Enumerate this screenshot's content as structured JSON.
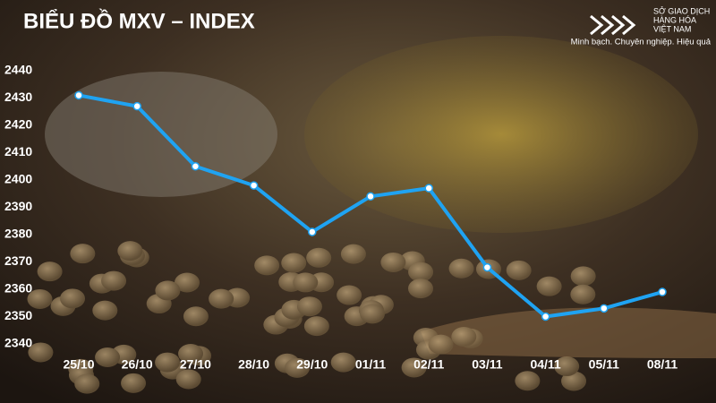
{
  "chart_data": {
    "type": "line",
    "title": "BIỂU ĐỒ MXV – INDEX",
    "categories": [
      "25/10",
      "26/10",
      "27/10",
      "28/10",
      "29/10",
      "01/11",
      "02/11",
      "03/11",
      "04/11",
      "05/11",
      "08/11"
    ],
    "values": [
      2431,
      2427,
      2405,
      2398,
      2381,
      2394,
      2397,
      2368,
      2350,
      2353,
      2359
    ],
    "color": "#1fa3f2",
    "ylim": [
      2340,
      2440
    ],
    "yticks": [
      2340,
      2350,
      2360,
      2370,
      2380,
      2390,
      2400,
      2410,
      2420,
      2430,
      2440
    ],
    "grid": false
  },
  "logo": {
    "lines": [
      "SỞ GIAO DỊCH",
      "HÀNG HÓA",
      "VIỆT NAM"
    ],
    "slogan": "Minh bạch. Chuyên nghiệp. Hiệu quả"
  }
}
